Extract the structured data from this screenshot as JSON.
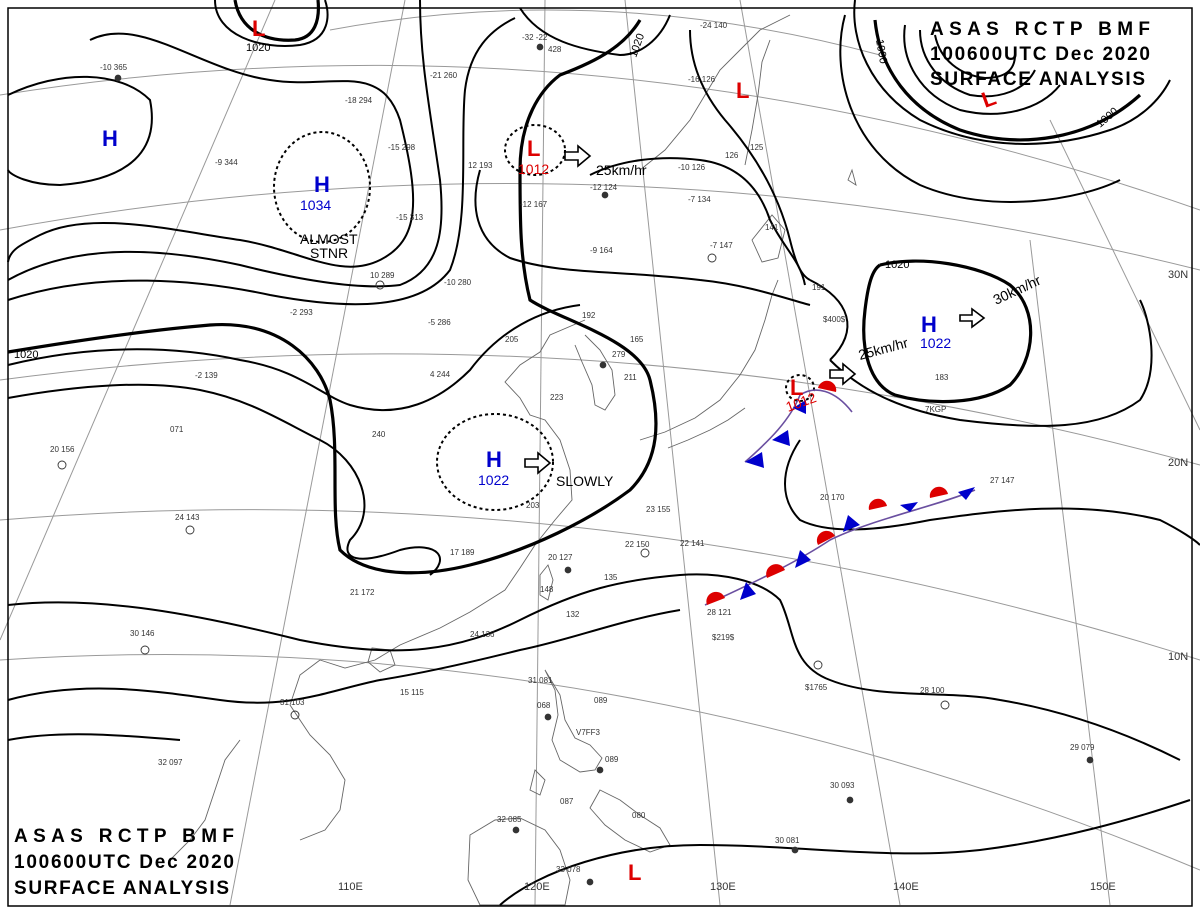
{
  "header": {
    "line1": "ASAS RCTP BMF",
    "line2": "100600UTC Dec 2020",
    "line3": "SURFACE ANALYSIS"
  },
  "colors": {
    "high_pressure": "#0000cc",
    "low_pressure": "#dd0000",
    "warm_front": "#dd0000",
    "cold_front": "#0000cc",
    "isobar": "#000000",
    "coastline": "#666666",
    "graticule": "#999999"
  },
  "isobar_labels": [
    "1020",
    "1020",
    "1000",
    "1000",
    "1020",
    "1020"
  ],
  "longitude_labels": [
    "110E",
    "120E",
    "130E",
    "140E",
    "150E"
  ],
  "latitude_labels": [
    "30N",
    "20N",
    "10N"
  ],
  "pressure_systems": [
    {
      "type": "H",
      "value": "1034",
      "note1": "ALMOST",
      "note2": "STNR",
      "motion": ""
    },
    {
      "type": "H",
      "value": "1022",
      "note1": "",
      "note2": "",
      "motion": "SLOWLY"
    },
    {
      "type": "H",
      "value": "1022",
      "note1": "",
      "note2": "",
      "motion": "30km/hr"
    },
    {
      "type": "H",
      "value": "",
      "note1": "",
      "note2": "",
      "motion": ""
    },
    {
      "type": "L",
      "value": "1012",
      "note1": "",
      "note2": "",
      "motion": "25km/hr"
    },
    {
      "type": "L",
      "value": "1012",
      "note1": "",
      "note2": "",
      "motion": "25km/hr"
    },
    {
      "type": "L",
      "value": "",
      "note1": "",
      "note2": "",
      "motion": ""
    },
    {
      "type": "L",
      "value": "",
      "note1": "",
      "note2": "",
      "motion": ""
    },
    {
      "type": "L",
      "value": "",
      "note1": "",
      "note2": "",
      "motion": ""
    },
    {
      "type": "L",
      "value": "",
      "note1": "",
      "note2": "",
      "motion": ""
    }
  ],
  "station_plots": [
    "-10 365",
    "-18 294",
    "-9 344",
    "-15 298",
    "-15 313",
    "10 289",
    "-10 280",
    "-2 293",
    "-5 286",
    "205",
    "4 244",
    "-2 139",
    "071",
    "240",
    "20 156",
    "24 143",
    "223",
    "203",
    "17 189",
    "21 172",
    "30 146",
    "31 103",
    "32 097",
    "24 136",
    "15 115",
    "148",
    "132",
    "135",
    "20 127",
    "22 150",
    "23 155",
    "22 141",
    "192",
    "165",
    "279",
    "211",
    "-12 124",
    "-12 167",
    "-9 164",
    "-10 126",
    "-7 134",
    "-7 147",
    "141",
    "126",
    "125",
    "191",
    "183",
    "7KGP",
    "20 170",
    "27 147",
    "28 121",
    "$219$",
    "$1765",
    "28 100",
    "29 079",
    "30 093",
    "30 081",
    "32 085",
    "33 078",
    "31 081",
    "068",
    "089",
    "V7FF3",
    "087",
    "080",
    "089",
    "-32 -22",
    "428",
    "-24 140",
    "-21 260",
    "$400$",
    "12 193",
    "-16 126"
  ]
}
